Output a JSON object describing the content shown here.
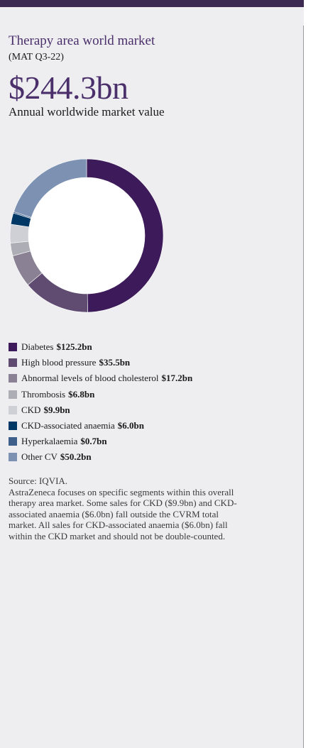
{
  "chart_data": {
    "type": "pie",
    "title": "Therapy area world market",
    "subtitle": "(MAT Q3-22)",
    "total_label": "$244.3bn",
    "total_caption": "Annual worldwide market value",
    "unit": "bn",
    "slices": [
      {
        "label": "Diabetes",
        "display": "$125.2bn",
        "value": 125.2,
        "color": "#3d1a59"
      },
      {
        "label": "High blood pressure",
        "display": "$35.5bn",
        "value": 35.5,
        "color": "#5f4c70"
      },
      {
        "label": "Abnormal levels of blood cholesterol",
        "display": "$17.2bn",
        "value": 17.2,
        "color": "#8a8194"
      },
      {
        "label": "Thrombosis",
        "display": "$6.8bn",
        "value": 6.8,
        "color": "#adadb5"
      },
      {
        "label": "CKD",
        "display": "$9.9bn",
        "value": 9.9,
        "color": "#cfcfd6"
      },
      {
        "label": "CKD-associated anaemia",
        "display": "$6.0bn",
        "value": 6.0,
        "color": "#003865"
      },
      {
        "label": "Hyperkalaemia",
        "display": "$0.7bn",
        "value": 0.7,
        "color": "#3d5f8a"
      },
      {
        "label": "Other CV",
        "display": "$50.2bn",
        "value": 50.2,
        "color": "#7d92b3"
      }
    ]
  },
  "source": {
    "line1": "Source: IQVIA.",
    "line2": "AstraZeneca focuses on specific segments within this overall therapy area market. Some sales for CKD ($9.9bn) and CKD-associated anaemia ($6.0bn) fall outside the CVRM total market. All sales for CKD-associated anaemia ($6.0bn) fall within the CKD market and should not be double-counted."
  }
}
